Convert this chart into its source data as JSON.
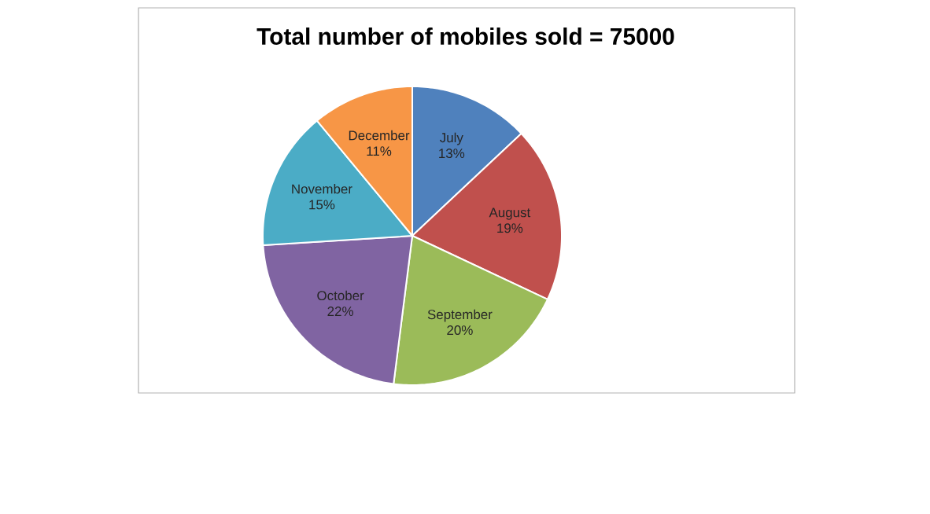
{
  "chart_data": {
    "type": "pie",
    "title": "Total number of mobiles sold = 75000",
    "categories": [
      "July",
      "August",
      "September",
      "October",
      "November",
      "December"
    ],
    "values": [
      13,
      19,
      20,
      22,
      15,
      11
    ],
    "value_labels": [
      "13%",
      "19%",
      "20%",
      "22%",
      "15%",
      "11%"
    ],
    "colors": [
      "#4f81bd",
      "#c0504d",
      "#9bbb59",
      "#8064a2",
      "#4bacc6",
      "#f79646"
    ]
  }
}
